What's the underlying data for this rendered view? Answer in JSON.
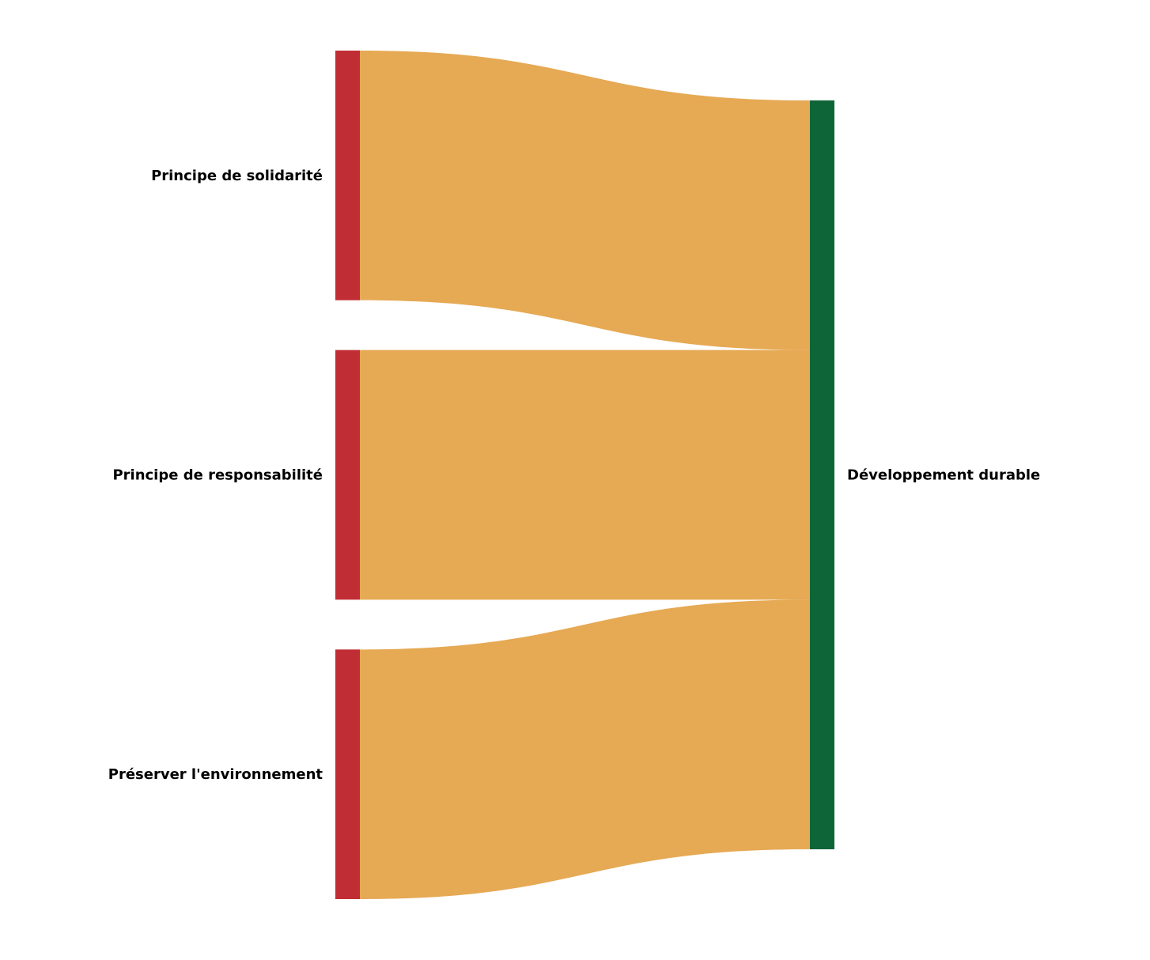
{
  "chart_data": {
    "type": "sankey",
    "sources": [
      {
        "label": "Principe de solidarité",
        "value": 1
      },
      {
        "label": "Principe de responsabilité",
        "value": 1
      },
      {
        "label": "Préserver l'environnement",
        "value": 1
      }
    ],
    "target": {
      "label": "Développement durable"
    },
    "colors": {
      "source_node": "#c12d35",
      "target_node": "#0e6538",
      "link": "#e6a954"
    }
  }
}
